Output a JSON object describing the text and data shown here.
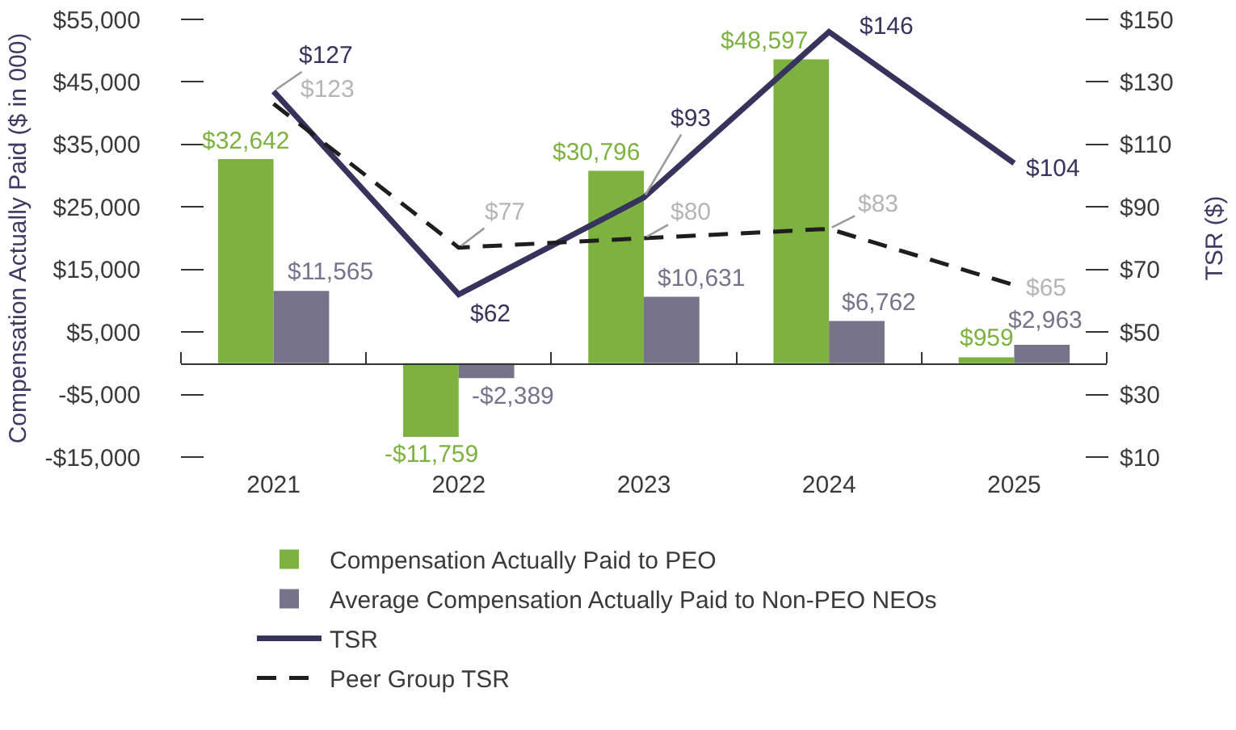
{
  "chart_data": {
    "type": "bar",
    "categories": [
      "2021",
      "2022",
      "2023",
      "2024",
      "2025"
    ],
    "series": [
      {
        "name": "Compensation Actually Paid to PEO",
        "color": "#7db241",
        "values": [
          32642,
          -11759,
          30796,
          48597,
          959
        ],
        "value_labels": [
          "$32,642",
          "-$11,759",
          "$30,796",
          "$48,597",
          "$959"
        ]
      },
      {
        "name": "Average Compensation Actually Paid to Non-PEO NEOs",
        "color": "#77738b",
        "values": [
          11565,
          -2389,
          10631,
          6762,
          2963
        ],
        "value_labels": [
          "$11,565",
          "-$2,389",
          "$10,631",
          "$6,762",
          "$2,963"
        ]
      },
      {
        "name": "TSR",
        "type": "line",
        "axis": "y2",
        "color": "#36335c",
        "line_style": "solid",
        "values": [
          127,
          62,
          93,
          146,
          104
        ],
        "value_labels": [
          "$127",
          "$62",
          "$93",
          "$146",
          "$104"
        ]
      },
      {
        "name": "Peer Group TSR",
        "type": "line",
        "axis": "y2",
        "color": "#1e1e1e",
        "line_style": "dashed",
        "values": [
          123,
          77,
          80,
          83,
          65
        ],
        "value_labels": [
          "$123",
          "$77",
          "$80",
          "$83",
          "$65"
        ]
      }
    ],
    "ylabel": "Compensation Actually Paid ($ in 000)",
    "y2label": "TSR ($)",
    "ylim": [
      -15000,
      55000
    ],
    "yticks": [
      {
        "value": -15000,
        "label": "-$15,000"
      },
      {
        "value": -5000,
        "label": "-$5,000"
      },
      {
        "value": 5000,
        "label": "$5,000"
      },
      {
        "value": 15000,
        "label": "$15,000"
      },
      {
        "value": 25000,
        "label": "$25,000"
      },
      {
        "value": 35000,
        "label": "$35,000"
      },
      {
        "value": 45000,
        "label": "$45,000"
      },
      {
        "value": 55000,
        "label": "$55,000"
      }
    ],
    "y2lim": [
      10,
      150
    ],
    "y2ticks": [
      {
        "value": 10,
        "label": "$10"
      },
      {
        "value": 30,
        "label": "$30"
      },
      {
        "value": 50,
        "label": "$50"
      },
      {
        "value": 70,
        "label": "$70"
      },
      {
        "value": 90,
        "label": "$90"
      },
      {
        "value": 110,
        "label": "$110"
      },
      {
        "value": 130,
        "label": "$130"
      },
      {
        "value": 150,
        "label": "$150"
      }
    ],
    "legend": "bottom",
    "marker": "none"
  }
}
